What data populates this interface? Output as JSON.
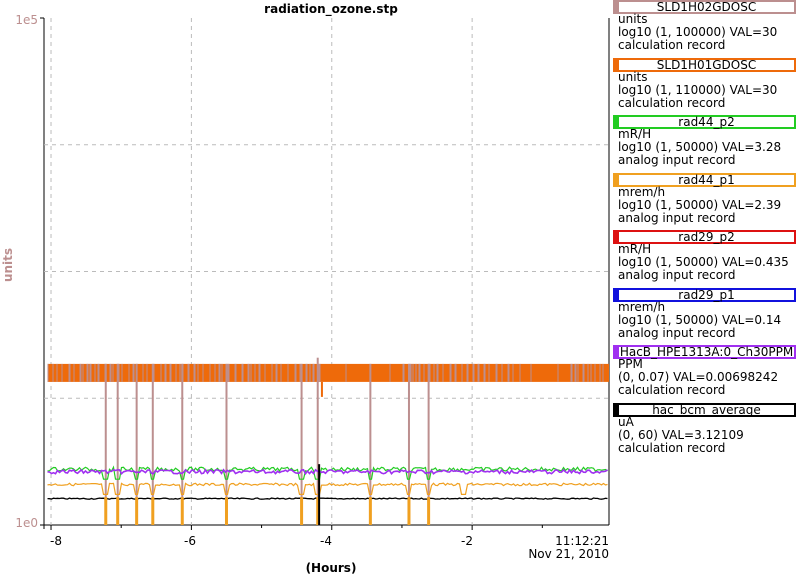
{
  "chart_data": {
    "type": "line",
    "title": "radiation_ozone.stp",
    "xlabel": "(Hours)",
    "ylabel": "units",
    "x_range": [
      -8.1,
      -0.05
    ],
    "y_scale": "log",
    "y_ticks": [
      "1e5",
      "1e0"
    ],
    "x_ticks": [
      "-8",
      "-6",
      "-4",
      "-2"
    ],
    "time_label": "11:12:21",
    "date_label": "Nov 21, 2010",
    "grid": true,
    "legend_position": "right",
    "series": [
      {
        "name": "SLD1H02GDOSC",
        "color": "#bc8f8f",
        "unit": "units",
        "range": "log10 (1, 100000) VAL=30",
        "type": "calculation record"
      },
      {
        "name": "SLD1H01GDOSC",
        "color": "#ee6a0a",
        "unit": "units",
        "range": "log10 (1, 110000) VAL=30",
        "type": "calculation record"
      },
      {
        "name": "rad44_p2",
        "color": "#22cc22",
        "unit": "mR/H",
        "range": "log10 (1, 50000) VAL=3.28",
        "type": "analog input record"
      },
      {
        "name": "rad44_p1",
        "color": "#f0a020",
        "unit": "mrem/h",
        "range": "log10 (1, 50000) VAL=2.39",
        "type": "analog input record"
      },
      {
        "name": "rad29_p2",
        "color": "#dd1111",
        "unit": "mR/H",
        "range": "log10 (1, 50000) VAL=0.435",
        "type": "analog input record"
      },
      {
        "name": "rad29_p1",
        "color": "#1111dd",
        "unit": "mrem/h",
        "range": "log10 (1, 50000) VAL=0.14",
        "type": "analog input record"
      },
      {
        "name": "HacB_HPE1313A:0_Ch30PPM",
        "color": "#a030f0",
        "unit": "PPM",
        "range": "(0, 0.07) VAL=0.00698242",
        "type": "calculation record"
      },
      {
        "name": "hac_bcm_average",
        "color": "#000000",
        "unit": "uA",
        "range": "(0, 60) VAL=3.12109",
        "type": "calculation record"
      }
    ],
    "levels": {
      "SLD1H02GDOSC": 0.3,
      "SLD1H01GDOSC": 0.3,
      "rad44_p2": 0.11,
      "rad44_p1": 0.08,
      "HacB_HPE1313A:0_Ch30PPM": 0.105,
      "hac_bcm_average": 0.052
    },
    "spike_hours": [
      -7.22,
      -7.05,
      -6.78,
      -6.55,
      -6.13,
      -5.5,
      -4.43,
      -4.2,
      -3.45,
      -2.9,
      -2.62
    ]
  }
}
